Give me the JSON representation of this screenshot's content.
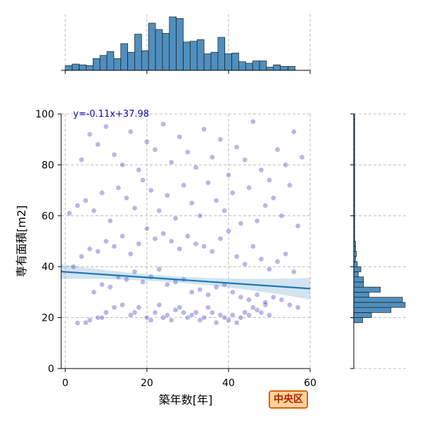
{
  "chart_data": {
    "type": "scatter",
    "title": "",
    "equation": "y=-0.11x+37.98",
    "xlabel": "築年数[年]",
    "ylabel": "専有面積[m2]",
    "xlim": [
      -1,
      60
    ],
    "ylim": [
      0,
      100
    ],
    "xticks": [
      "0",
      "20",
      "40",
      "60"
    ],
    "yticks": [
      "0",
      "20",
      "40",
      "60",
      "80",
      "100"
    ],
    "grid": true,
    "point_color": "#3030c0",
    "line_color": "#1f77b4",
    "hist_color": "#4f8fbf",
    "regression": {
      "slope": -0.11,
      "intercept": 37.98
    },
    "badge": "中央区",
    "x_hist": {
      "bins": [
        0,
        1.7,
        3.4,
        5.1,
        6.8,
        8.5,
        10.2,
        11.9,
        13.6,
        15.3,
        17,
        18.7,
        20.4,
        22.1,
        23.8,
        25.5,
        27.2,
        28.9,
        30.6,
        32.3,
        34,
        35.7,
        37.4,
        39.1,
        40.8,
        42.5,
        44.2,
        45.9,
        47.6,
        49.3,
        51,
        52.7,
        54.6,
        56.3
      ],
      "counts": [
        6,
        8,
        7,
        6,
        15,
        19,
        24,
        15,
        34,
        23,
        46,
        25,
        60,
        52,
        47,
        68,
        66,
        36,
        37,
        39,
        21,
        23,
        42,
        21,
        22,
        11,
        9,
        12,
        12,
        4,
        7,
        5,
        5
      ]
    },
    "y_hist": {
      "bins": [
        18,
        20,
        22,
        24,
        26,
        28,
        30,
        32,
        34,
        36,
        38,
        40,
        42,
        44,
        46,
        48,
        50,
        52,
        54,
        56,
        58,
        60,
        62,
        64,
        66,
        68,
        70,
        72,
        74,
        76,
        78,
        80,
        82,
        84,
        86,
        88,
        90,
        92,
        94,
        96,
        98
      ],
      "counts": [
        10,
        20,
        42,
        58,
        55,
        17,
        30,
        11,
        11,
        5,
        8,
        4,
        2,
        3,
        2,
        2,
        1,
        1,
        1,
        1,
        1,
        1,
        1,
        1,
        1,
        1,
        1,
        1,
        1,
        1,
        1,
        1,
        1,
        1,
        1,
        1,
        1,
        1,
        1,
        1,
        1
      ]
    },
    "points": [
      [
        3,
        17.9
      ],
      [
        5,
        18
      ],
      [
        6,
        19
      ],
      [
        8,
        20
      ],
      [
        9,
        20
      ],
      [
        10,
        22
      ],
      [
        12,
        24
      ],
      [
        14,
        25
      ],
      [
        16,
        21
      ],
      [
        17,
        22
      ],
      [
        18,
        24
      ],
      [
        20,
        20
      ],
      [
        21,
        19
      ],
      [
        22,
        22
      ],
      [
        23,
        25
      ],
      [
        24,
        20
      ],
      [
        25,
        21
      ],
      [
        26,
        19
      ],
      [
        27,
        23
      ],
      [
        28,
        24
      ],
      [
        29,
        22
      ],
      [
        30,
        20
      ],
      [
        31,
        21
      ],
      [
        32,
        22
      ],
      [
        33,
        19
      ],
      [
        34,
        20
      ],
      [
        35,
        24
      ],
      [
        36,
        22
      ],
      [
        37,
        18
      ],
      [
        38,
        21
      ],
      [
        39,
        20
      ],
      [
        40,
        19
      ],
      [
        41,
        21
      ],
      [
        42,
        18
      ],
      [
        43,
        20
      ],
      [
        44,
        22
      ],
      [
        45,
        21
      ],
      [
        46,
        24
      ],
      [
        47,
        23
      ],
      [
        48,
        22
      ],
      [
        49,
        25
      ],
      [
        50,
        21
      ],
      [
        7,
        30
      ],
      [
        9,
        33
      ],
      [
        11,
        32
      ],
      [
        13,
        36
      ],
      [
        15,
        35
      ],
      [
        17,
        38
      ],
      [
        19,
        34
      ],
      [
        21,
        36
      ],
      [
        23,
        39
      ],
      [
        25,
        33
      ],
      [
        27,
        34
      ],
      [
        29,
        35
      ],
      [
        31,
        30
      ],
      [
        33,
        31
      ],
      [
        35,
        29
      ],
      [
        37,
        32
      ],
      [
        39,
        33
      ],
      [
        41,
        30
      ],
      [
        43,
        28
      ],
      [
        45,
        27
      ],
      [
        47,
        29
      ],
      [
        49,
        26
      ],
      [
        51,
        28
      ],
      [
        53,
        27
      ],
      [
        55,
        25
      ],
      [
        57,
        24
      ],
      [
        2,
        40
      ],
      [
        4,
        44
      ],
      [
        6,
        47
      ],
      [
        8,
        46
      ],
      [
        10,
        50
      ],
      [
        12,
        48
      ],
      [
        14,
        52
      ],
      [
        16,
        45
      ],
      [
        18,
        49
      ],
      [
        20,
        55
      ],
      [
        22,
        51
      ],
      [
        24,
        53
      ],
      [
        26,
        50
      ],
      [
        28,
        47
      ],
      [
        30,
        52
      ],
      [
        32,
        49
      ],
      [
        34,
        48
      ],
      [
        36,
        46
      ],
      [
        38,
        51
      ],
      [
        40,
        54
      ],
      [
        42,
        44
      ],
      [
        44,
        41
      ],
      [
        46,
        48
      ],
      [
        48,
        43
      ],
      [
        50,
        39
      ],
      [
        52,
        42
      ],
      [
        54,
        45
      ],
      [
        56,
        38
      ],
      [
        1,
        61
      ],
      [
        3,
        64
      ],
      [
        5,
        66
      ],
      [
        7,
        62
      ],
      [
        9,
        69
      ],
      [
        11,
        58
      ],
      [
        13,
        71
      ],
      [
        15,
        67
      ],
      [
        17,
        63
      ],
      [
        19,
        74
      ],
      [
        21,
        70
      ],
      [
        23,
        62
      ],
      [
        25,
        68
      ],
      [
        27,
        59
      ],
      [
        29,
        72
      ],
      [
        31,
        65
      ],
      [
        33,
        60
      ],
      [
        35,
        73
      ],
      [
        37,
        66
      ],
      [
        39,
        62
      ],
      [
        41,
        69
      ],
      [
        43,
        57
      ],
      [
        45,
        71
      ],
      [
        47,
        58
      ],
      [
        49,
        64
      ],
      [
        51,
        67
      ],
      [
        53,
        60
      ],
      [
        55,
        72
      ],
      [
        57,
        56
      ],
      [
        4,
        82
      ],
      [
        6,
        92
      ],
      [
        8,
        88
      ],
      [
        10,
        95
      ],
      [
        12,
        84
      ],
      [
        14,
        80
      ],
      [
        16,
        93
      ],
      [
        18,
        78
      ],
      [
        20,
        89
      ],
      [
        22,
        86
      ],
      [
        24,
        96
      ],
      [
        26,
        81
      ],
      [
        28,
        91
      ],
      [
        30,
        85
      ],
      [
        32,
        79
      ],
      [
        34,
        94
      ],
      [
        36,
        83
      ],
      [
        38,
        90
      ],
      [
        40,
        76
      ],
      [
        42,
        87
      ],
      [
        44,
        82
      ],
      [
        46,
        97
      ],
      [
        48,
        78
      ],
      [
        50,
        74
      ],
      [
        52,
        86
      ],
      [
        54,
        80
      ],
      [
        56,
        93
      ],
      [
        58,
        83
      ]
    ]
  }
}
